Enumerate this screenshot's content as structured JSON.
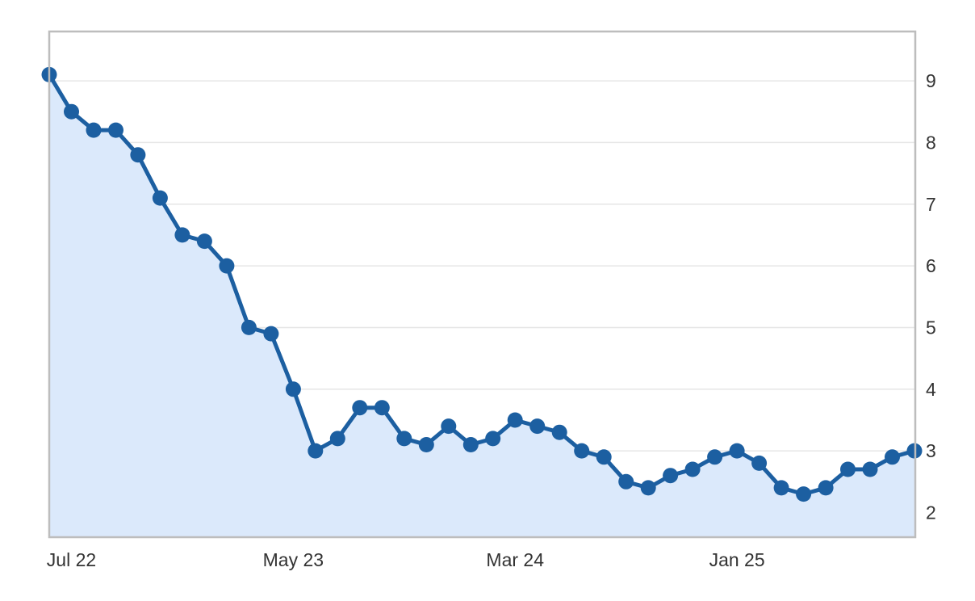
{
  "chart_data": {
    "type": "area",
    "x_tick_labels": [
      "Jul 22",
      "May 23",
      "Mar 24",
      "Jan 25"
    ],
    "x_tick_indices": [
      1,
      11,
      21,
      31
    ],
    "y_ticks": [
      2,
      3,
      4,
      5,
      6,
      7,
      8,
      9
    ],
    "ylim": [
      1.6,
      9.8
    ],
    "y_axis_side": "right",
    "grid": true,
    "legend": "none",
    "colors": {
      "line": "#1c5fa1",
      "fill": "#dbe9fb",
      "grid": "#e6e6e6",
      "frame": "#bdbdbd"
    },
    "series": [
      {
        "values": [
          9.1,
          8.5,
          8.2,
          8.2,
          7.8,
          7.1,
          6.5,
          6.4,
          6.0,
          5.0,
          4.9,
          4.0,
          3.0,
          3.2,
          3.7,
          3.7,
          3.2,
          3.1,
          3.4,
          3.1,
          3.2,
          3.5,
          3.4,
          3.3,
          3.0,
          2.9,
          2.5,
          2.4,
          2.6,
          2.7,
          2.9,
          3.0,
          2.8,
          2.4,
          2.3,
          2.4,
          2.7,
          2.7,
          2.9,
          3.0
        ]
      }
    ]
  }
}
